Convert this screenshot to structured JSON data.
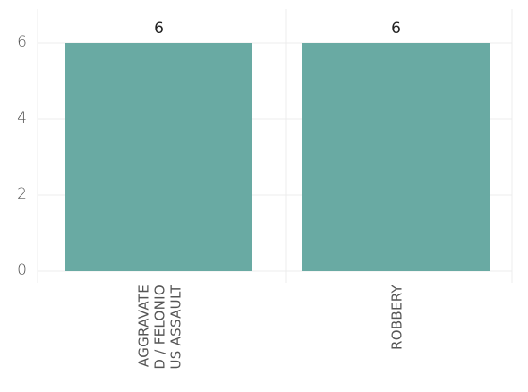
{
  "chart_data": {
    "type": "bar",
    "categories": [
      [
        "AGGRAVATE",
        "D / FELONIO",
        "US ASSAULT"
      ],
      [
        "ROBBERY"
      ]
    ],
    "values": [
      6,
      6
    ],
    "data_labels": [
      "6",
      "6"
    ],
    "ylim": [
      0,
      6
    ],
    "yticks": [
      "0",
      "2",
      "4",
      "6"
    ],
    "title": "",
    "xlabel": "",
    "ylabel": "",
    "grid": true,
    "bar_color": "#69aaa3"
  }
}
